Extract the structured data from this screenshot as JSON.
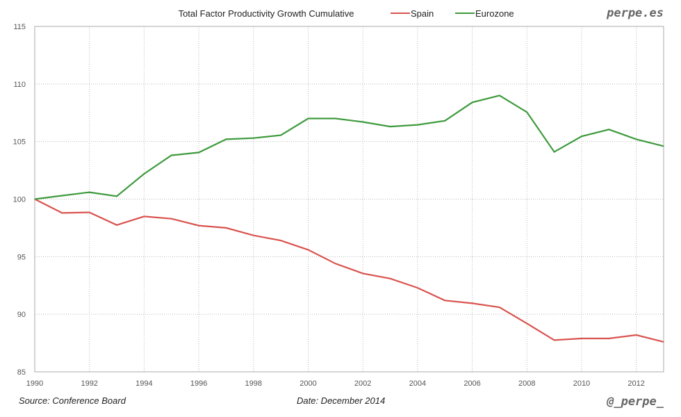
{
  "chart_data": {
    "type": "line",
    "title": "Total Factor Productivity Growth Cumulative",
    "xlabel": "",
    "ylabel": "",
    "x": [
      1990,
      1991,
      1992,
      1993,
      1994,
      1995,
      1996,
      1997,
      1998,
      1999,
      2000,
      2001,
      2002,
      2003,
      2004,
      2005,
      2006,
      2007,
      2008,
      2009,
      2010,
      2011,
      2012,
      2013
    ],
    "xlim": [
      1990,
      2013
    ],
    "ylim": [
      85,
      115
    ],
    "x_ticks": [
      "1990",
      "1992",
      "1994",
      "1996",
      "1998",
      "2000",
      "2002",
      "2004",
      "2006",
      "2008",
      "2010",
      "2012"
    ],
    "y_ticks": [
      "85",
      "90",
      "95",
      "100",
      "105",
      "110",
      "115"
    ],
    "grid": true,
    "legend_placement": "top",
    "series": [
      {
        "name": "Spain",
        "color": "#d9534f",
        "values": [
          100,
          98.8,
          98.85,
          97.75,
          98.5,
          98.3,
          97.7,
          97.5,
          96.85,
          96.4,
          95.6,
          94.4,
          93.55,
          93.1,
          92.3,
          91.2,
          90.95,
          90.6,
          89.2,
          87.75,
          87.9,
          87.9,
          88.2,
          87.6
        ]
      },
      {
        "name": "Eurozone",
        "color": "#3d9a3d",
        "values": [
          100,
          100.3,
          100.6,
          100.25,
          102.2,
          103.8,
          104.05,
          105.2,
          105.3,
          105.55,
          107,
          107,
          106.7,
          106.3,
          106.45,
          106.8,
          108.4,
          109,
          107.55,
          104.1,
          105.45,
          106.05,
          105.2,
          104.6
        ]
      }
    ]
  },
  "branding": {
    "site": "perpe.es",
    "handle": "@_perpe_"
  },
  "footer": {
    "source": "Source: Conference Board",
    "date": "Date: December 2014"
  }
}
